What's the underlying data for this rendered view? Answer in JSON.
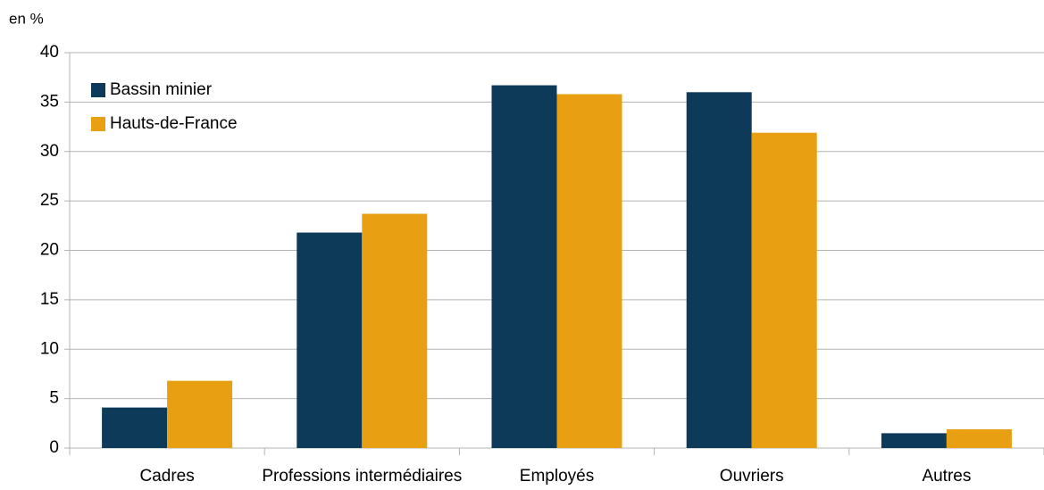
{
  "chart_data": {
    "type": "bar",
    "y_unit_label": "en %",
    "categories": [
      "Cadres",
      "Professions intermédiaires",
      "Employés",
      "Ouvriers",
      "Autres"
    ],
    "series": [
      {
        "name": "Bassin minier",
        "color": "#0e3a5a",
        "values": [
          4.1,
          21.8,
          36.7,
          36.0,
          1.5
        ]
      },
      {
        "name": "Hauts-de-France",
        "color": "#e89f12",
        "values": [
          6.8,
          23.7,
          35.8,
          31.9,
          1.9
        ]
      }
    ],
    "ylim": [
      0,
      40
    ],
    "yticks": [
      0,
      5,
      10,
      15,
      20,
      25,
      30,
      35,
      40
    ],
    "grid": true,
    "legend": "top-left"
  }
}
